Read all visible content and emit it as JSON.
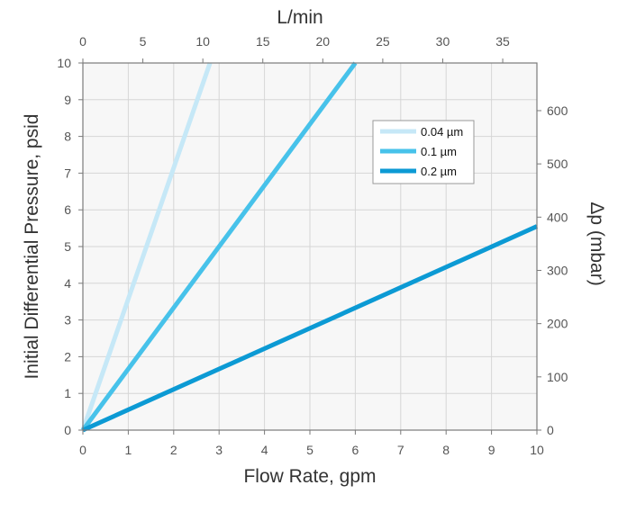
{
  "chart_data": {
    "type": "line",
    "xlabel": "Flow Rate, gpm",
    "ylabel": "Initial Differential Pressure, psid",
    "x2label": "L/min",
    "y2label": "Δp (mbar)",
    "xlim": [
      0,
      10
    ],
    "ylim": [
      0,
      10
    ],
    "x2lim": [
      0,
      37.85
    ],
    "y2lim": [
      0,
      689.5
    ],
    "xticks": [
      "0",
      "1",
      "2",
      "3",
      "4",
      "5",
      "6",
      "7",
      "8",
      "9",
      "10"
    ],
    "yticks": [
      "0",
      "1",
      "2",
      "3",
      "4",
      "5",
      "6",
      "7",
      "8",
      "9",
      "10"
    ],
    "x2ticks": [
      {
        "value": 0,
        "label": "0"
      },
      {
        "value": 5,
        "label": "5"
      },
      {
        "value": 10,
        "label": "10"
      },
      {
        "value": 15,
        "label": "15"
      },
      {
        "value": 20,
        "label": "20"
      },
      {
        "value": 25,
        "label": "25"
      },
      {
        "value": 30,
        "label": "30"
      },
      {
        "value": 35,
        "label": "35"
      }
    ],
    "y2ticks": [
      {
        "value": 0,
        "label": "0"
      },
      {
        "value": 100,
        "label": "100"
      },
      {
        "value": 200,
        "label": "200"
      },
      {
        "value": 300,
        "label": "300"
      },
      {
        "value": 400,
        "label": "400"
      },
      {
        "value": 500,
        "label": "500"
      },
      {
        "value": 600,
        "label": "600"
      }
    ],
    "grid": true,
    "legend_position": "top-right",
    "series": [
      {
        "name": "0.04 µm",
        "color": "#c6e8f7",
        "x": [
          0,
          2.8
        ],
        "y": [
          0,
          10
        ]
      },
      {
        "name": "0.1 µm",
        "color": "#47c2ea",
        "x": [
          0,
          6
        ],
        "y": [
          0,
          10
        ]
      },
      {
        "name": "0.2 µm",
        "color": "#0c9ad4",
        "x": [
          0,
          10
        ],
        "y": [
          0,
          5.55
        ]
      }
    ]
  }
}
